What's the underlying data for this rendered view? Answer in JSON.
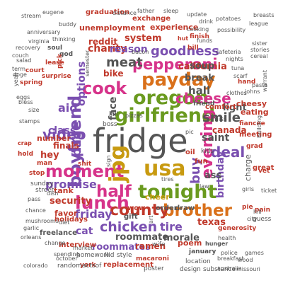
{
  "colors": {
    "gray": "#555555",
    "green": "#6a9a1f",
    "pink": "#d6338a",
    "orange": "#d9701a",
    "red": "#c0392b",
    "teal": "#2a8f7f",
    "purple": "#7a4fb0",
    "olive": "#8a8a2a",
    "blue": "#2f6fb0",
    "gold": "#c89a10"
  },
  "words": [
    {
      "text": "fridge",
      "c": "gray"
    },
    {
      "text": "girlfriend",
      "c": "green"
    },
    {
      "text": "tonight",
      "c": "green"
    },
    {
      "text": "oregon",
      "c": "green"
    },
    {
      "text": "payday",
      "c": "orange"
    },
    {
      "text": "usa",
      "c": "gold"
    },
    {
      "text": "boyfriend",
      "c": "purple"
    },
    {
      "text": "moment",
      "c": "pink"
    },
    {
      "text": "lunch",
      "c": "pink"
    },
    {
      "text": "cook",
      "c": "pink"
    },
    {
      "text": "pepperoni",
      "c": "pink"
    },
    {
      "text": "brother",
      "c": "orange"
    },
    {
      "text": "evening",
      "c": "pink"
    },
    {
      "text": "county",
      "c": "red"
    },
    {
      "text": "half",
      "c": "pink"
    },
    {
      "text": "cheese",
      "c": "pink"
    },
    {
      "text": "jpg",
      "c": "gold"
    },
    {
      "text": "video",
      "c": "purple"
    },
    {
      "text": "chicken",
      "c": "purple"
    },
    {
      "text": "deal",
      "c": "purple"
    },
    {
      "text": "meat",
      "c": "gray"
    },
    {
      "text": "goodness",
      "c": "purple"
    },
    {
      "text": "smile",
      "c": "gray"
    },
    {
      "text": "friday",
      "c": "purple"
    },
    {
      "text": "hall",
      "c": "gray"
    },
    {
      "text": "page",
      "c": "purple"
    },
    {
      "text": "buy",
      "c": "purple"
    },
    {
      "text": "aid",
      "c": "purple"
    },
    {
      "text": "face",
      "c": "gray"
    },
    {
      "text": "canada",
      "c": "red"
    },
    {
      "text": "options",
      "c": "purple"
    },
    {
      "text": "promise",
      "c": "purple"
    },
    {
      "text": "security",
      "c": "red"
    },
    {
      "text": "tire",
      "c": "purple"
    },
    {
      "text": "saint",
      "c": "gray"
    },
    {
      "text": "birthday",
      "c": "purple"
    },
    {
      "text": "roommate",
      "c": "gray"
    },
    {
      "text": "morale",
      "c": "gray"
    },
    {
      "text": "class",
      "c": "purple"
    },
    {
      "text": "charity",
      "c": "red"
    },
    {
      "text": "reason",
      "c": "purple"
    },
    {
      "text": "system",
      "c": "red"
    },
    {
      "text": "california",
      "c": "red"
    },
    {
      "text": "break",
      "c": "gray"
    },
    {
      "text": "soup",
      "c": "gray"
    },
    {
      "text": "cheer",
      "c": "gold"
    },
    {
      "text": "hey",
      "c": "red"
    },
    {
      "text": "finals",
      "c": "red"
    },
    {
      "text": "number",
      "c": "red"
    },
    {
      "text": "light",
      "c": "gray"
    },
    {
      "text": "cat",
      "c": "purple"
    },
    {
      "text": "eating",
      "c": "red"
    },
    {
      "text": "texas",
      "c": "red"
    },
    {
      "text": "roommates",
      "c": "purple"
    },
    {
      "text": "ramen",
      "c": "red"
    },
    {
      "text": "charge",
      "c": "gray"
    },
    {
      "text": "bike",
      "c": "red"
    },
    {
      "text": "reddit",
      "c": "red"
    },
    {
      "text": "unemployment",
      "c": "red"
    },
    {
      "text": "experience",
      "c": "red"
    },
    {
      "text": "graduation",
      "c": "red"
    },
    {
      "text": "exchange",
      "c": "red"
    },
    {
      "text": "ass",
      "c": "gray"
    },
    {
      "text": "gift",
      "c": "gray"
    },
    {
      "text": "wow",
      "c": "red"
    },
    {
      "text": "order",
      "c": "gray"
    },
    {
      "text": "draw",
      "c": "gray"
    },
    {
      "text": "poem",
      "c": "red"
    },
    {
      "text": "wife",
      "c": "gray"
    },
    {
      "text": "tank",
      "c": "red"
    },
    {
      "text": "favor",
      "c": "red"
    },
    {
      "text": "holidays",
      "c": "red"
    },
    {
      "text": "interview",
      "c": "red"
    },
    {
      "text": "homework",
      "c": "gray"
    },
    {
      "text": "kid",
      "c": "gray"
    },
    {
      "text": "style",
      "c": "gray"
    },
    {
      "text": "replacement",
      "c": "red"
    },
    {
      "text": "macaroni",
      "c": "red"
    },
    {
      "text": "poster",
      "c": "gray"
    },
    {
      "text": "january",
      "c": "gray"
    },
    {
      "text": "location",
      "c": "gray"
    },
    {
      "text": "design",
      "c": "gray"
    },
    {
      "text": "substance",
      "c": "gray"
    },
    {
      "text": "market",
      "c": "gray"
    },
    {
      "text": "freelance",
      "c": "gray"
    },
    {
      "text": "york",
      "c": "red"
    },
    {
      "text": "randomactsof",
      "c": "gray"
    },
    {
      "text": "colorado",
      "c": "gray"
    },
    {
      "text": "spending",
      "c": "gray"
    },
    {
      "text": "october",
      "c": "gray"
    },
    {
      "text": "shit",
      "c": "red"
    },
    {
      "text": "friend",
      "c": "gray"
    },
    {
      "text": "comfort",
      "c": "red"
    },
    {
      "text": "cheesy",
      "c": "red"
    },
    {
      "text": "miss",
      "c": "gray"
    },
    {
      "text": "fiancee",
      "c": "red"
    },
    {
      "text": "meeting",
      "c": "red"
    },
    {
      "text": "great",
      "c": "red"
    },
    {
      "text": "vet",
      "c": "red"
    },
    {
      "text": "pie",
      "c": "red"
    },
    {
      "text": "pain",
      "c": "red"
    },
    {
      "text": "guess",
      "c": "gray"
    },
    {
      "text": "hill",
      "c": "gray"
    },
    {
      "text": "city",
      "c": "gray"
    },
    {
      "text": "generosity",
      "c": "red"
    },
    {
      "text": "health",
      "c": "gray"
    },
    {
      "text": "hunger",
      "c": "gray"
    },
    {
      "text": "police",
      "c": "gray"
    },
    {
      "text": "games",
      "c": "gray"
    },
    {
      "text": "wood",
      "c": "gray"
    },
    {
      "text": "missouri",
      "c": "gray"
    },
    {
      "text": "breakfast",
      "c": "gray"
    },
    {
      "text": "australia",
      "c": "gray"
    },
    {
      "text": "street",
      "c": "gray"
    },
    {
      "text": "sunday",
      "c": "gray"
    },
    {
      "text": "dish",
      "c": "gray"
    },
    {
      "text": "pass",
      "c": "gray"
    },
    {
      "text": "chance",
      "c": "gray"
    },
    {
      "text": "garlic",
      "c": "gray"
    },
    {
      "text": "orleans",
      "c": "gray"
    },
    {
      "text": "change",
      "c": "gray"
    },
    {
      "text": "mushrooms",
      "c": "gray"
    },
    {
      "text": "diet",
      "c": "gray"
    },
    {
      "text": "stop",
      "c": "red"
    },
    {
      "text": "man",
      "c": "red"
    },
    {
      "text": "hold",
      "c": "red"
    },
    {
      "text": "crap",
      "c": "red"
    },
    {
      "text": "stamps",
      "c": "gray"
    },
    {
      "text": "eggs",
      "c": "gray"
    },
    {
      "text": "size",
      "c": "gray"
    },
    {
      "text": "bless",
      "c": "gray"
    },
    {
      "text": "spring",
      "c": "red"
    },
    {
      "text": "court",
      "c": "red"
    },
    {
      "text": "surprise",
      "c": "red"
    },
    {
      "text": "yeah",
      "c": "gray"
    },
    {
      "text": "doge",
      "c": "gray"
    },
    {
      "text": "term",
      "c": "gray"
    },
    {
      "text": "couch",
      "c": "gray"
    },
    {
      "text": "recovery",
      "c": "gray"
    },
    {
      "text": "salad",
      "c": "gray"
    },
    {
      "text": "soul",
      "c": "gray"
    },
    {
      "text": "god",
      "c": "gray"
    },
    {
      "text": "lease",
      "c": "red"
    },
    {
      "text": "pick",
      "c": "red"
    },
    {
      "text": "anniversary",
      "c": "gray"
    },
    {
      "text": "virginia",
      "c": "gray"
    },
    {
      "text": "stream",
      "c": "gray"
    },
    {
      "text": "eugene",
      "c": "gray"
    },
    {
      "text": "buddy",
      "c": "gray"
    },
    {
      "text": "thinking",
      "c": "gray"
    },
    {
      "text": "distance",
      "c": "gray"
    },
    {
      "text": "father",
      "c": "gray"
    },
    {
      "text": "sleep",
      "c": "gray"
    },
    {
      "text": "update",
      "c": "gray"
    },
    {
      "text": "drink",
      "c": "gray"
    },
    {
      "text": "cooking",
      "c": "gray"
    },
    {
      "text": "potatoes",
      "c": "gray"
    },
    {
      "text": "breasts",
      "c": "gray"
    },
    {
      "text": "league",
      "c": "gray"
    },
    {
      "text": "possibility",
      "c": "gray"
    },
    {
      "text": "sister",
      "c": "gray"
    },
    {
      "text": "stories",
      "c": "gray"
    },
    {
      "text": "cereal",
      "c": "gray"
    },
    {
      "text": "nights",
      "c": "gray"
    },
    {
      "text": "cafeteria",
      "c": "gray"
    },
    {
      "text": "funds",
      "c": "gray"
    },
    {
      "text": "hut",
      "c": "red"
    },
    {
      "text": "finish",
      "c": "red"
    },
    {
      "text": "bill",
      "c": "red"
    },
    {
      "text": "bacon",
      "c": "gray"
    },
    {
      "text": "tuna",
      "c": "gray"
    },
    {
      "text": "scarf",
      "c": "gray"
    },
    {
      "text": "hand",
      "c": "red"
    },
    {
      "text": "pasta",
      "c": "gray"
    },
    {
      "text": "johns",
      "c": "gray"
    },
    {
      "text": "warrant",
      "c": "gray"
    },
    {
      "text": "building",
      "c": "gray"
    },
    {
      "text": "grad",
      "c": "red"
    },
    {
      "text": "girls",
      "c": "gray"
    },
    {
      "text": "ticket",
      "c": "gray"
    },
    {
      "text": "law",
      "c": "gray"
    },
    {
      "text": "sign",
      "c": "gray"
    },
    {
      "text": "pic",
      "c": "gray"
    },
    {
      "text": "oil",
      "c": "red"
    },
    {
      "text": "art",
      "c": "gray"
    },
    {
      "text": "kill",
      "c": "gray"
    },
    {
      "text": "boss",
      "c": "gray"
    },
    {
      "text": "pizzas",
      "c": "gray"
    },
    {
      "text": "clothes",
      "c": "gray"
    },
    {
      "text": "semester",
      "c": "gray"
    },
    {
      "text": "fun",
      "c": "red"
    },
    {
      "text": "tires",
      "c": "gray"
    },
    {
      "text": "kids",
      "c": "gray"
    }
  ]
}
